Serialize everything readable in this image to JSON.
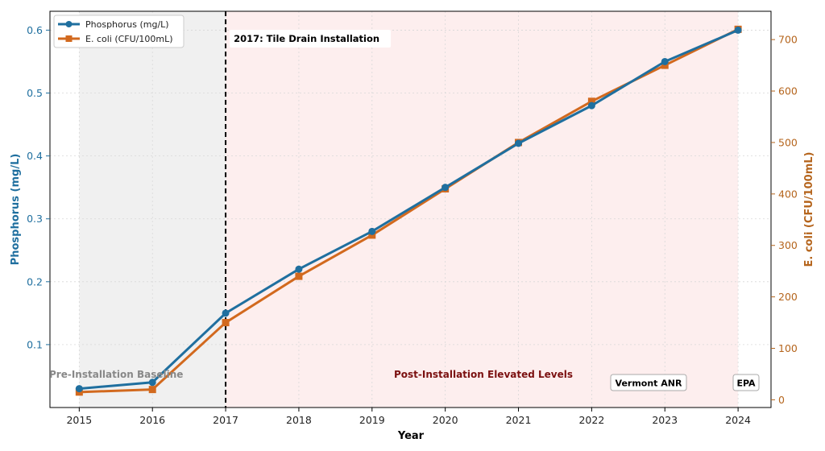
{
  "chart_data": {
    "type": "line",
    "xlabel": "Year",
    "ylabel_left": "Phosphorus (mg/L)",
    "ylabel_right": "E. coli (CFU/100mL)",
    "x": [
      2015,
      2016,
      2017,
      2018,
      2019,
      2020,
      2021,
      2022,
      2023,
      2024
    ],
    "x_ticks": [
      "2015",
      "2016",
      "2017",
      "2018",
      "2019",
      "2020",
      "2021",
      "2022",
      "2023",
      "2024"
    ],
    "xlim": [
      2014.6,
      2024.45
    ],
    "ylim_left": [
      0.0,
      0.63
    ],
    "yticks_left": [
      "0.1",
      "0.2",
      "0.3",
      "0.4",
      "0.5",
      "0.6"
    ],
    "ylim_right": [
      -15,
      755
    ],
    "yticks_right": [
      "0",
      "100",
      "200",
      "300",
      "400",
      "500",
      "600",
      "700"
    ],
    "grid": true,
    "legend_position": "top-left",
    "series": [
      {
        "name": "Phosphorus (mg/L)",
        "axis": "left",
        "marker": "circle",
        "color": "#1f6f9f",
        "values": [
          0.03,
          0.04,
          0.15,
          0.22,
          0.28,
          0.35,
          0.42,
          0.48,
          0.55,
          0.6
        ]
      },
      {
        "name": "E. coli (CFU/100mL)",
        "axis": "right",
        "marker": "square",
        "color": "#d2691e",
        "values": [
          15,
          20,
          150,
          240,
          320,
          410,
          500,
          580,
          650,
          720
        ]
      }
    ],
    "regions": [
      {
        "label": "Pre-Installation Baseline",
        "x_start": 2015,
        "x_end": 2017,
        "fill": "#f0f0f0",
        "text_color": "#888888"
      },
      {
        "label": "Post-Installation Elevated Levels",
        "x_start": 2017,
        "x_end": 2024,
        "fill": "#fdeeee",
        "text_color": "#7b1010"
      }
    ],
    "annotations": [
      {
        "text": "2017: Tile Drain Installation",
        "x": 2017
      }
    ],
    "source_labels": [
      "Vermont ANR",
      "EPA"
    ],
    "colors": {
      "left_axis": "#1f6f9f",
      "right_axis": "#b5651d",
      "vline": "#000000"
    }
  }
}
